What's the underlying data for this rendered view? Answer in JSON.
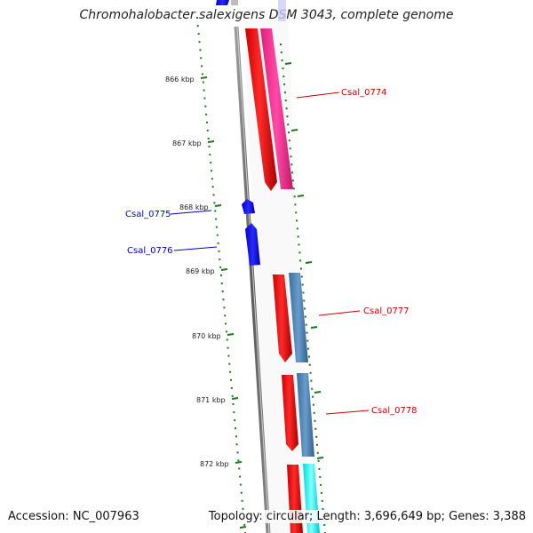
{
  "title": "Chromohalobacter salexigens DSM 3043, complete genome",
  "accession": "Accession: NC_007963",
  "topology": "Topology: circular; Length: 3,696,649 bp; Genes: 3,388",
  "colors": {
    "backbone": "#808080",
    "tick": "#1a7a1a",
    "gene_red": "#ff0000",
    "gene_magenta": "#ff3399",
    "gene_steel": "#4a7fb0",
    "gene_blue": "#0000ee",
    "gene_cyan": "#00ffff",
    "label_red": "#cc0000",
    "label_blue": "#0000cc"
  },
  "ruler": [
    {
      "label": "866 kbp",
      "kbp": 866
    },
    {
      "label": "867 kbp",
      "kbp": 867
    },
    {
      "label": "868 kbp",
      "kbp": 868
    },
    {
      "label": "869 kbp",
      "kbp": 869
    },
    {
      "label": "870 kbp",
      "kbp": 870
    },
    {
      "label": "871 kbp",
      "kbp": 871
    },
    {
      "label": "872 kbp",
      "kbp": 872
    }
  ],
  "gene_labels": [
    {
      "name": "Csal_0774",
      "color": "#cc0000"
    },
    {
      "name": "Csal_0775",
      "color": "#0000cc"
    },
    {
      "name": "Csal_0776",
      "color": "#0000cc"
    },
    {
      "name": "Csal_0777",
      "color": "#cc0000"
    },
    {
      "name": "Csal_0778",
      "color": "#cc0000"
    }
  ]
}
